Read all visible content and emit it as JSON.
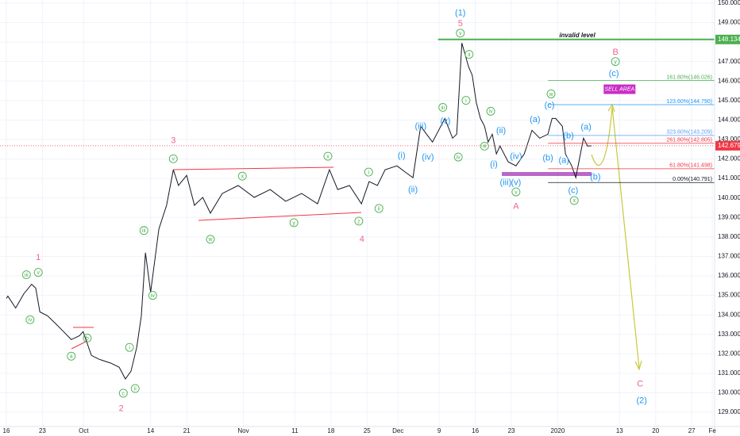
{
  "chart_data": {
    "type": "line",
    "x": [
      0.0,
      0.3,
      1.8,
      3.4,
      4.9,
      5.7,
      6.5,
      8.0,
      9.6,
      11.1,
      12.6,
      14.2,
      14.9,
      16.5,
      18.0,
      20.3,
      21.9,
      23.1,
      24.2,
      25.3,
      26.2,
      27.0,
      28.0,
      29.6,
      31.1,
      32.4,
      33.4,
      35.0,
      36.5,
      38.1,
      39.6,
      41.9,
      45.0,
      48.1,
      51.2,
      54.2,
      57.3,
      60.4,
      62.7,
      64.3,
      66.6,
      68.9,
      70.4,
      72.0,
      73.5,
      75.8,
      77.4,
      78.9,
      80.4,
      82.7,
      85.1,
      86.6,
      87.4,
      88.4,
      89.7,
      90.4,
      91.2,
      92.0,
      92.8,
      93.5,
      94.3,
      95.1,
      95.8,
      97.4,
      98.9,
      100.5,
      102.0,
      103.5,
      105.1,
      105.9,
      106.6,
      107.9,
      108.5,
      109.7,
      110.5,
      112.0,
      112.8,
      113.6
    ],
    "series": [
      {
        "color": "#131722",
        "values": [
          134.84,
          134.96,
          134.35,
          135.08,
          135.57,
          135.37,
          134.15,
          133.95,
          133.54,
          133.14,
          132.73,
          132.93,
          133.14,
          131.92,
          131.72,
          131.52,
          131.31,
          130.71,
          131.11,
          132.33,
          133.95,
          137.19,
          135.16,
          138.41,
          139.62,
          141.45,
          140.64,
          141.16,
          139.62,
          140.03,
          139.22,
          140.23,
          140.64,
          140.03,
          140.43,
          139.83,
          140.23,
          139.7,
          141.45,
          140.43,
          140.64,
          139.7,
          140.84,
          140.64,
          141.45,
          141.65,
          141.33,
          141.04,
          143.68,
          142.87,
          144.08,
          143.07,
          143.27,
          147.95,
          146.72,
          146.31,
          144.89,
          144.08,
          143.68,
          142.87,
          143.27,
          142.26,
          142.66,
          141.85,
          141.65,
          142.26,
          143.47,
          143.07,
          143.27,
          144.08,
          144.08,
          143.68,
          142.26,
          141.65,
          141.04,
          143.07,
          142.66,
          142.679
        ]
      }
    ],
    "xlim": [
      -1.23,
      137.44
    ],
    "xticks": [
      {
        "value": 0,
        "label": "16"
      },
      {
        "value": 7,
        "label": "23"
      },
      {
        "value": 15,
        "label": "Oct"
      },
      {
        "value": 28,
        "label": "14"
      },
      {
        "value": 35,
        "label": "21"
      },
      {
        "value": 46,
        "label": "Nov"
      },
      {
        "value": 56,
        "label": "11"
      },
      {
        "value": 63,
        "label": "18"
      },
      {
        "value": 70,
        "label": "25"
      },
      {
        "value": 76,
        "label": "Dec"
      },
      {
        "value": 84,
        "label": "9"
      },
      {
        "value": 91,
        "label": "16"
      },
      {
        "value": 98,
        "label": "23"
      },
      {
        "value": 107,
        "label": "2020"
      },
      {
        "value": 119,
        "label": "13"
      },
      {
        "value": 126,
        "label": "20"
      },
      {
        "value": 133,
        "label": "27"
      },
      {
        "value": 137,
        "label": "Fe"
      }
    ],
    "ylim": [
      128.27,
      150.16
    ],
    "yticks": [
      {
        "value": 129,
        "label": "129.000"
      },
      {
        "value": 130,
        "label": "130.000"
      },
      {
        "value": 131,
        "label": "131.000"
      },
      {
        "value": 132,
        "label": "132.000"
      },
      {
        "value": 133,
        "label": "133.000"
      },
      {
        "value": 134,
        "label": "134.000"
      },
      {
        "value": 135,
        "label": "135.000"
      },
      {
        "value": 136,
        "label": "136.000"
      },
      {
        "value": 137,
        "label": "137.000"
      },
      {
        "value": 138,
        "label": "138.000"
      },
      {
        "value": 139,
        "label": "139.000"
      },
      {
        "value": 140,
        "label": "140.000"
      },
      {
        "value": 141,
        "label": "141.000"
      },
      {
        "value": 142,
        "label": "142.000"
      },
      {
        "value": 143,
        "label": "143.000"
      },
      {
        "value": 144,
        "label": "144.000"
      },
      {
        "value": 145,
        "label": "145.000"
      },
      {
        "value": 146,
        "label": "146.000"
      },
      {
        "value": 147,
        "label": "147.000"
      },
      {
        "value": 148,
        "label": "148.000"
      },
      {
        "value": 149,
        "label": "149.000"
      },
      {
        "value": 150,
        "label": "150.000"
      }
    ],
    "grid": true,
    "invalid_level": {
      "label": "invalid level",
      "value": 148.134,
      "color": "#4caf50"
    },
    "last_price": {
      "value": 142.679,
      "color": "#f23645"
    },
    "fib_levels": [
      {
        "label": "161.80%(146.026)",
        "value": 146.026,
        "color": "#4caf50"
      },
      {
        "label": "123.60%(144.790)",
        "value": 144.79,
        "color": "#2196f3"
      },
      {
        "label": "323.60%(143.209)",
        "value": 143.209,
        "color": "#5b9cf6"
      },
      {
        "label": "261.80%(142.805)",
        "value": 142.805,
        "color": "#f23645"
      },
      {
        "label": "61.80%(141.498)",
        "value": 141.498,
        "color": "#f23645"
      },
      {
        "label": "0.00%(140.791)",
        "value": 140.791,
        "color": "#131722"
      }
    ],
    "sell_area": {
      "label": "SELL AREA",
      "x": 119.0,
      "y": 145.58,
      "color": "#c92ec4"
    },
    "annotations": [
      {
        "text": "(1)",
        "x": 88.1,
        "y": 149.51,
        "color": "#2196f3"
      },
      {
        "text": "5",
        "x": 88.1,
        "y": 148.95,
        "color": "#f06292"
      },
      {
        "text": "v",
        "x": 88.1,
        "y": 148.46,
        "color": "#4caf50",
        "circle": true
      },
      {
        "text": "1",
        "x": 6.2,
        "y": 136.95,
        "color": "#f06292"
      },
      {
        "text": "iii",
        "x": 3.9,
        "y": 136.06,
        "color": "#4caf50",
        "circle": true
      },
      {
        "text": "v",
        "x": 6.2,
        "y": 136.18,
        "color": "#4caf50",
        "circle": true
      },
      {
        "text": "iv",
        "x": 4.6,
        "y": 133.75,
        "color": "#4caf50",
        "circle": true
      },
      {
        "text": "a",
        "x": 12.6,
        "y": 131.88,
        "color": "#4caf50",
        "circle": true
      },
      {
        "text": "b",
        "x": 15.7,
        "y": 132.81,
        "color": "#4caf50",
        "circle": true
      },
      {
        "text": "c",
        "x": 22.7,
        "y": 129.98,
        "color": "#4caf50",
        "circle": true
      },
      {
        "text": "ii",
        "x": 25.0,
        "y": 130.22,
        "color": "#4caf50",
        "circle": true
      },
      {
        "text": "i",
        "x": 23.9,
        "y": 132.33,
        "color": "#4caf50",
        "circle": true
      },
      {
        "text": "2",
        "x": 22.3,
        "y": 129.21,
        "color": "#f06292"
      },
      {
        "text": "iii",
        "x": 26.7,
        "y": 138.33,
        "color": "#4caf50",
        "circle": true
      },
      {
        "text": "iv",
        "x": 28.4,
        "y": 135.0,
        "color": "#4caf50",
        "circle": true
      },
      {
        "text": "3",
        "x": 32.4,
        "y": 142.95,
        "color": "#f06292"
      },
      {
        "text": "v",
        "x": 32.4,
        "y": 142.01,
        "color": "#4caf50",
        "circle": true
      },
      {
        "text": "w",
        "x": 39.6,
        "y": 137.88,
        "color": "#4caf50",
        "circle": true
      },
      {
        "text": "x",
        "x": 45.8,
        "y": 141.12,
        "color": "#4caf50",
        "circle": true
      },
      {
        "text": "y",
        "x": 55.8,
        "y": 138.73,
        "color": "#4caf50",
        "circle": true
      },
      {
        "text": "x",
        "x": 62.4,
        "y": 142.14,
        "color": "#4caf50",
        "circle": true
      },
      {
        "text": "z",
        "x": 68.4,
        "y": 138.81,
        "color": "#4caf50",
        "circle": true
      },
      {
        "text": "4",
        "x": 69.0,
        "y": 137.88,
        "color": "#f06292"
      },
      {
        "text": "i",
        "x": 70.3,
        "y": 141.33,
        "color": "#4caf50",
        "circle": true
      },
      {
        "text": "ii",
        "x": 72.3,
        "y": 139.46,
        "color": "#4caf50",
        "circle": true
      },
      {
        "text": "(i)",
        "x": 76.7,
        "y": 142.18,
        "color": "#2196f3"
      },
      {
        "text": "(ii)",
        "x": 78.9,
        "y": 140.43,
        "color": "#2196f3"
      },
      {
        "text": "(iii)",
        "x": 80.4,
        "y": 143.68,
        "color": "#2196f3"
      },
      {
        "text": "(iv)",
        "x": 81.8,
        "y": 142.1,
        "color": "#2196f3"
      },
      {
        "text": "(v)",
        "x": 85.2,
        "y": 143.96,
        "color": "#2196f3"
      },
      {
        "text": "iii",
        "x": 84.7,
        "y": 144.65,
        "color": "#4caf50",
        "circle": true
      },
      {
        "text": "iv",
        "x": 87.7,
        "y": 142.1,
        "color": "#4caf50",
        "circle": true
      },
      {
        "text": "ii",
        "x": 89.8,
        "y": 147.37,
        "color": "#4caf50",
        "circle": true
      },
      {
        "text": "i",
        "x": 89.2,
        "y": 145.01,
        "color": "#4caf50",
        "circle": true
      },
      {
        "text": "iv",
        "x": 94.0,
        "y": 144.45,
        "color": "#4caf50",
        "circle": true
      },
      {
        "text": "(ii)",
        "x": 96.0,
        "y": 143.47,
        "color": "#2196f3"
      },
      {
        "text": "iii",
        "x": 92.8,
        "y": 142.66,
        "color": "#4caf50",
        "circle": true
      },
      {
        "text": "(i)",
        "x": 94.6,
        "y": 141.73,
        "color": "#2196f3"
      },
      {
        "text": "(iv)",
        "x": 98.9,
        "y": 142.14,
        "color": "#2196f3"
      },
      {
        "text": "(iii)",
        "x": 96.9,
        "y": 140.8,
        "color": "#2196f3"
      },
      {
        "text": "(v)",
        "x": 98.9,
        "y": 140.8,
        "color": "#2196f3"
      },
      {
        "text": "v",
        "x": 98.9,
        "y": 140.31,
        "color": "#4caf50",
        "circle": true
      },
      {
        "text": "A",
        "x": 98.9,
        "y": 139.58,
        "color": "#f06292"
      },
      {
        "text": "w",
        "x": 105.7,
        "y": 145.34,
        "color": "#4caf50",
        "circle": true
      },
      {
        "text": "(c)",
        "x": 105.4,
        "y": 144.77,
        "color": "#2196f3"
      },
      {
        "text": "(a)",
        "x": 102.6,
        "y": 144.04,
        "color": "#2196f3"
      },
      {
        "text": "(b)",
        "x": 105.1,
        "y": 142.06,
        "color": "#2196f3"
      },
      {
        "text": "(b)",
        "x": 109.1,
        "y": 143.19,
        "color": "#2196f3"
      },
      {
        "text": "(a)",
        "x": 108.2,
        "y": 141.93,
        "color": "#2196f3"
      },
      {
        "text": "(c)",
        "x": 110.0,
        "y": 140.39,
        "color": "#2196f3"
      },
      {
        "text": "x",
        "x": 110.2,
        "y": 139.87,
        "color": "#4caf50",
        "circle": true
      },
      {
        "text": "(a)",
        "x": 112.5,
        "y": 143.64,
        "color": "#2196f3"
      },
      {
        "text": "(b)",
        "x": 114.3,
        "y": 141.08,
        "color": "#2196f3"
      },
      {
        "text": "B",
        "x": 118.2,
        "y": 147.49,
        "color": "#f06292"
      },
      {
        "text": "y",
        "x": 118.2,
        "y": 147.0,
        "color": "#4caf50",
        "circle": true
      },
      {
        "text": "(c)",
        "x": 117.9,
        "y": 146.39,
        "color": "#2196f3"
      },
      {
        "text": "C",
        "x": 123.0,
        "y": 130.46,
        "color": "#f06292"
      },
      {
        "text": "(2)",
        "x": 123.3,
        "y": 129.61,
        "color": "#2196f3"
      }
    ]
  }
}
